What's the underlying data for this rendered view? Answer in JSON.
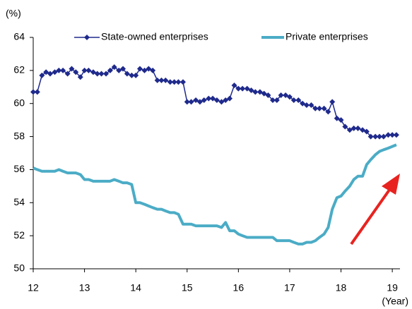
{
  "chart_data": {
    "type": "line",
    "y_label": "(%)",
    "x_label": "(Year)",
    "x": [
      12,
      12.08,
      12.17,
      12.25,
      12.33,
      12.42,
      12.5,
      12.58,
      12.67,
      12.75,
      12.83,
      12.92,
      13,
      13.08,
      13.17,
      13.25,
      13.33,
      13.42,
      13.5,
      13.58,
      13.67,
      13.75,
      13.83,
      13.92,
      14,
      14.08,
      14.17,
      14.25,
      14.33,
      14.42,
      14.5,
      14.58,
      14.67,
      14.75,
      14.83,
      14.92,
      15,
      15.08,
      15.17,
      15.25,
      15.33,
      15.42,
      15.5,
      15.58,
      15.67,
      15.75,
      15.83,
      15.92,
      16,
      16.08,
      16.17,
      16.25,
      16.33,
      16.42,
      16.5,
      16.58,
      16.67,
      16.75,
      16.83,
      16.92,
      17,
      17.08,
      17.17,
      17.25,
      17.33,
      17.42,
      17.5,
      17.58,
      17.67,
      17.75,
      17.83,
      17.92,
      18,
      18.08,
      18.17,
      18.25,
      18.33,
      18.42,
      18.5,
      18.58,
      18.67,
      18.75,
      18.83,
      18.92,
      19,
      19.08
    ],
    "series": [
      {
        "name": "State-owned enterprises",
        "color": "#1f2a8c",
        "marker": "diamond",
        "values": [
          60.7,
          60.7,
          61.7,
          61.9,
          61.8,
          61.9,
          62.0,
          62.0,
          61.8,
          62.1,
          61.9,
          61.6,
          62.0,
          62.0,
          61.9,
          61.8,
          61.8,
          61.8,
          62.0,
          62.2,
          62.0,
          62.1,
          61.8,
          61.7,
          61.7,
          62.1,
          62.0,
          62.1,
          62.0,
          61.4,
          61.4,
          61.4,
          61.3,
          61.3,
          61.3,
          61.3,
          60.1,
          60.1,
          60.2,
          60.1,
          60.2,
          60.3,
          60.3,
          60.2,
          60.1,
          60.2,
          60.3,
          61.1,
          60.9,
          60.9,
          60.9,
          60.8,
          60.7,
          60.7,
          60.6,
          60.5,
          60.2,
          60.2,
          60.5,
          60.5,
          60.4,
          60.2,
          60.2,
          60.0,
          59.9,
          59.9,
          59.7,
          59.7,
          59.7,
          59.5,
          60.1,
          59.1,
          59.0,
          58.6,
          58.4,
          58.5,
          58.5,
          58.4,
          58.3,
          58.0,
          58.0,
          58.0,
          58.0,
          58.1,
          58.1,
          58.1
        ]
      },
      {
        "name": "Private enterprises",
        "color": "#4bacc6",
        "values": [
          56.1,
          56.0,
          55.9,
          55.9,
          55.9,
          55.9,
          56.0,
          55.9,
          55.8,
          55.8,
          55.8,
          55.7,
          55.4,
          55.4,
          55.3,
          55.3,
          55.3,
          55.3,
          55.3,
          55.4,
          55.3,
          55.2,
          55.2,
          55.1,
          54.0,
          54.0,
          53.9,
          53.8,
          53.7,
          53.6,
          53.6,
          53.5,
          53.4,
          53.4,
          53.3,
          52.7,
          52.7,
          52.7,
          52.6,
          52.6,
          52.6,
          52.6,
          52.6,
          52.6,
          52.5,
          52.8,
          52.3,
          52.3,
          52.1,
          52.0,
          51.9,
          51.9,
          51.9,
          51.9,
          51.9,
          51.9,
          51.9,
          51.7,
          51.7,
          51.7,
          51.7,
          51.6,
          51.5,
          51.5,
          51.6,
          51.6,
          51.7,
          51.9,
          52.1,
          52.5,
          53.6,
          54.3,
          54.4,
          54.7,
          55.0,
          55.4,
          55.6,
          55.6,
          56.3,
          56.6,
          56.9,
          57.1,
          57.2,
          57.3,
          57.4,
          57.5
        ]
      }
    ],
    "xlim": [
      12,
      19.15
    ],
    "xticks": [
      12,
      13,
      14,
      15,
      16,
      17,
      18,
      19
    ],
    "ylim": [
      50,
      64
    ],
    "yticks": [
      50,
      52,
      54,
      56,
      58,
      60,
      62,
      64
    ],
    "grid": false,
    "legend": "top"
  }
}
